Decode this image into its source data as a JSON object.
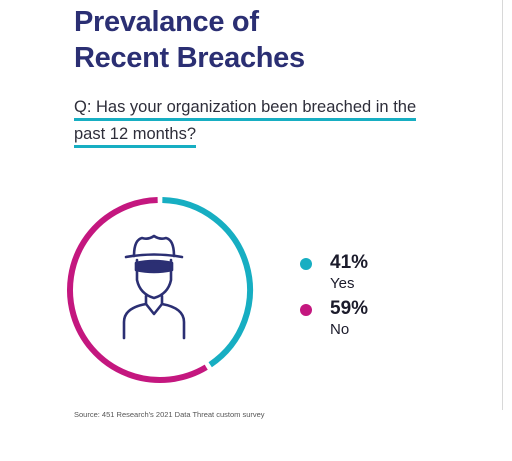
{
  "title_lines": [
    "Prevalance of",
    "Recent Breaches"
  ],
  "question_lines": [
    "Q: Has your organization been breached in the",
    "past 12 months?"
  ],
  "source": "Source: 451 Research's 2021 Data Threat custom survey",
  "icon": "hacker-icon",
  "colors": {
    "title": "#2b2f73",
    "yes": "#17aec2",
    "no": "#c4177f",
    "icon": "#2b2f73"
  },
  "chart_data": {
    "type": "pie",
    "style": "donut",
    "categories": [
      "Yes",
      "No"
    ],
    "values": [
      41,
      59
    ],
    "value_labels": [
      "41%",
      "59%"
    ],
    "colors": [
      "#17aec2",
      "#c4177f"
    ],
    "legend": "right"
  }
}
